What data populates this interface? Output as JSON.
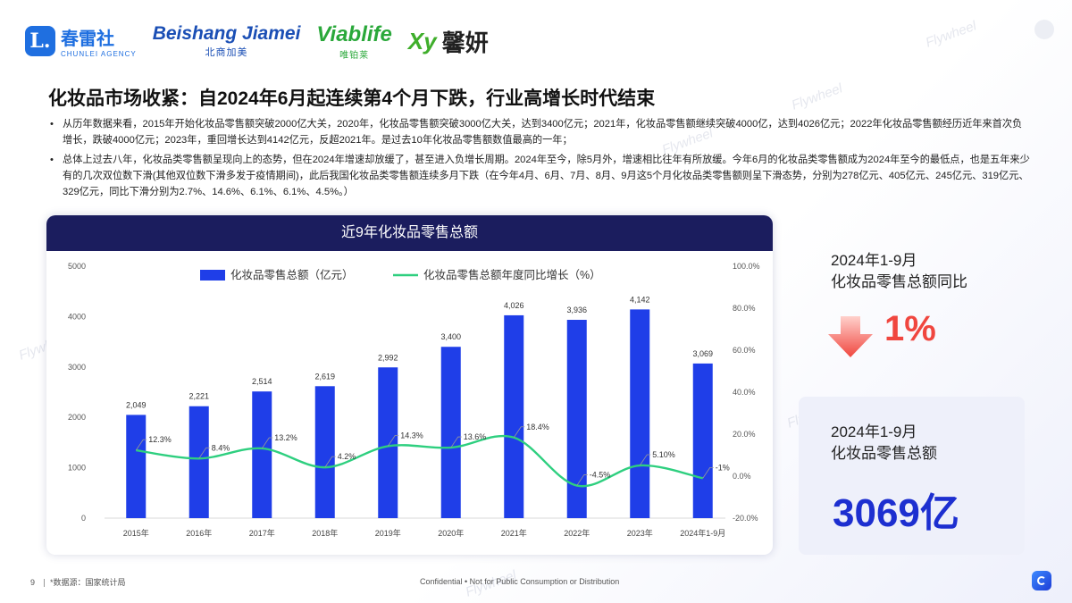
{
  "logos": [
    {
      "name": "春雷社",
      "sub": "CHUNLEI AGENCY",
      "mark": "L."
    },
    {
      "name": "Beishang Jiamei",
      "sub": "北商加美"
    },
    {
      "name": "Viablife",
      "sub": "唯铂莱"
    },
    {
      "name": "馨妍",
      "prefix": "Xy"
    }
  ],
  "watermark": "Flywheel",
  "title": "化妆品市场收紧：自2024年6月起连续第4个月下跌，行业高增长时代结束",
  "bullets": [
    "从历年数据来看，2015年开始化妆品零售额突破2000亿大关，2020年，化妆品零售额突破3000亿大关，达到3400亿元；2021年，化妆品零售额继续突破4000亿，达到4026亿元；2022年化妆品零售额经历近年来首次负增长，跌破4000亿元；2023年，重回增长达到4142亿元，反超2021年。是过去10年化妆品零售额数值最高的一年；",
    "总体上过去八年，化妆品类零售额呈现向上的态势，但在2024年增速却放缓了，甚至进入负增长周期。2024年至今，除5月外，增速相比往年有所放缓。今年6月的化妆品类零售额成为2024年至今的最低点，也是五年来少有的几次双位数下滑(其他双位数下滑多发于疫情期间)，此后我国化妆品类零售额连续多月下跌（在今年4月、6月、7月、8月、9月这5个月化妆品类零售额则呈下滑态势，分别为278亿元、405亿元、245亿元、319亿元、329亿元，同比下滑分别为2.7%、14.6%、6.1%、6.1%、4.5%。）"
  ],
  "chart_data": {
    "type": "bar",
    "title": "近9年化妆品零售总额",
    "categories": [
      "2015年",
      "2016年",
      "2017年",
      "2018年",
      "2019年",
      "2020年",
      "2021年",
      "2022年",
      "2023年",
      "2024年1-9月"
    ],
    "series": [
      {
        "name": "化妆品零售总额（亿元）",
        "type": "bar",
        "axis": "left",
        "color": "#1f3ee8",
        "values": [
          2049,
          2221,
          2514,
          2619,
          2992,
          3400,
          4026,
          3936,
          4142,
          3069
        ],
        "labels": [
          "2,049",
          "2,221",
          "2,514",
          "2,619",
          "2,992",
          "3,400",
          "4,026",
          "3,936",
          "4,142",
          "3,069"
        ]
      },
      {
        "name": "化妆品零售总额年度同比增长（%）",
        "type": "line",
        "axis": "right",
        "color": "#2ecf7f",
        "values": [
          12.3,
          8.4,
          13.2,
          4.2,
          14.3,
          13.6,
          18.4,
          -4.5,
          5.1,
          -1
        ],
        "labels": [
          "12.3%",
          "8.4%",
          "13.2%",
          "4.2%",
          "14.3%",
          "13.6%",
          "18.4%",
          "-4.5%",
          "5.10%",
          "-1%"
        ]
      }
    ],
    "left_axis": {
      "ylim": [
        0,
        5000
      ],
      "ticks": [
        "0",
        "1000",
        "2000",
        "3000",
        "4000",
        "5000"
      ]
    },
    "right_axis": {
      "ylim": [
        -20,
        100
      ],
      "ticks": [
        "-20.0%",
        "0.0%",
        "20.0%",
        "40.0%",
        "60.0%",
        "80.0%",
        "100.0%"
      ]
    },
    "legend_position": "top",
    "grid": false
  },
  "kpi1": {
    "label_line1": "2024年1-9月",
    "label_line2": "化妆品零售总额同比",
    "value": "1%",
    "arrow": "down-arrow",
    "arrow_color": "#f0463f"
  },
  "kpi2": {
    "label_line1": "2024年1-9月",
    "label_line2": "化妆品零售总额",
    "value": "3069亿"
  },
  "footer": {
    "page": "9",
    "source": "*数据源：国家统计局",
    "confidential": "Confidential • Not for Public Consumption or Distribution"
  }
}
